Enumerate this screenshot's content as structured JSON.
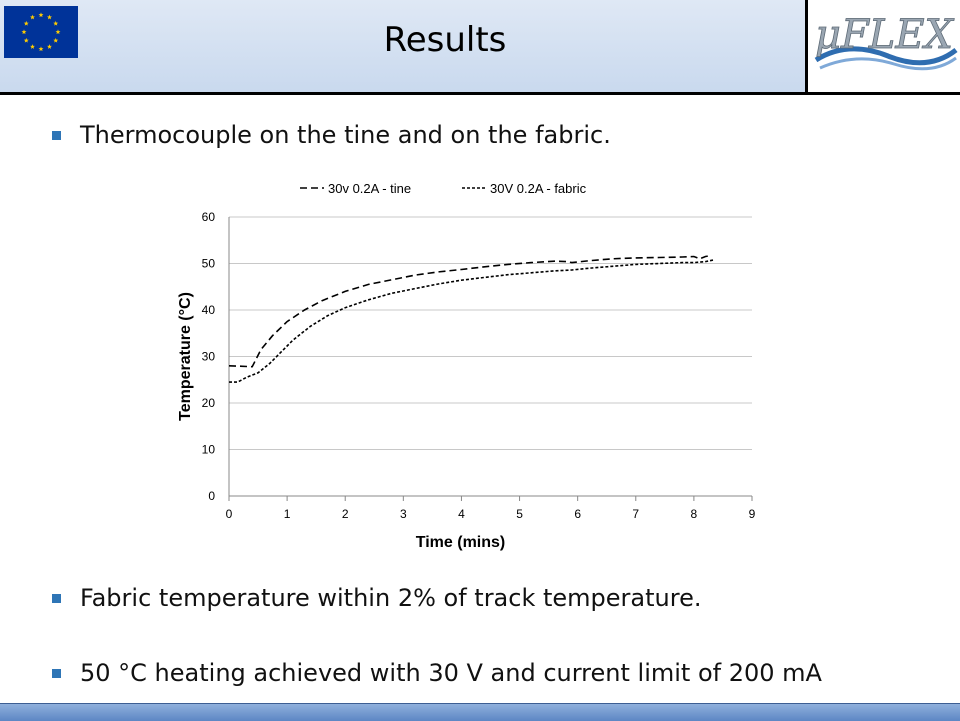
{
  "header": {
    "title": "Results",
    "logo_text": "μFLEX"
  },
  "bullets": [
    "Thermocouple on the tine and on the fabric.",
    "Fabric temperature within 2% of track temperature.",
    "50 °C heating achieved with 30 V and current limit of 200 mA"
  ],
  "colors": {
    "bullet": "#2e75b6",
    "header_bg": "#cfdcf0",
    "logo_blue": "#2f6db0"
  },
  "chart_data": {
    "type": "line",
    "xlabel": "Time (mins)",
    "ylabel": "Temperature (°C)",
    "xlim": [
      0,
      9
    ],
    "ylim": [
      0,
      60
    ],
    "xticks": [
      0,
      1,
      2,
      3,
      4,
      5,
      6,
      7,
      8,
      9
    ],
    "yticks": [
      0,
      10,
      20,
      30,
      40,
      50,
      60
    ],
    "grid": "horizontal",
    "legend_position": "top",
    "series": [
      {
        "name": "30v 0.2A - tine",
        "dash": "long",
        "x": [
          0,
          0.4,
          0.55,
          0.75,
          1.0,
          1.3,
          1.6,
          2.0,
          2.4,
          2.8,
          3.2,
          3.6,
          4.0,
          4.4,
          4.8,
          5.2,
          5.6,
          5.8,
          5.9,
          6.2,
          6.6,
          7.0,
          7.4,
          7.8,
          8.0,
          8.1,
          8.2,
          8.3
        ],
        "y": [
          28,
          27.8,
          31.5,
          34.5,
          37.5,
          40,
          42,
          44,
          45.5,
          46.5,
          47.5,
          48.2,
          48.7,
          49.3,
          49.8,
          50.2,
          50.5,
          50.4,
          50.2,
          50.6,
          51,
          51.2,
          51.3,
          51.4,
          51.5,
          51,
          51.5,
          51.7
        ]
      },
      {
        "name": "30V 0.2A - fabric",
        "dash": "short",
        "x": [
          0,
          0.15,
          0.3,
          0.5,
          0.7,
          0.9,
          1.1,
          1.4,
          1.7,
          2.0,
          2.4,
          2.8,
          3.2,
          3.6,
          4.0,
          4.4,
          4.8,
          5.2,
          5.6,
          5.9,
          6.2,
          6.6,
          7.0,
          7.4,
          7.8,
          8.0,
          8.2,
          8.35
        ],
        "y": [
          24.5,
          24.5,
          25.5,
          26.5,
          28.5,
          31,
          33.5,
          36.5,
          38.8,
          40.5,
          42.2,
          43.6,
          44.6,
          45.6,
          46.4,
          47,
          47.6,
          48,
          48.4,
          48.6,
          49,
          49.4,
          49.8,
          50,
          50.2,
          50.2,
          50.4,
          50.8
        ]
      }
    ]
  }
}
